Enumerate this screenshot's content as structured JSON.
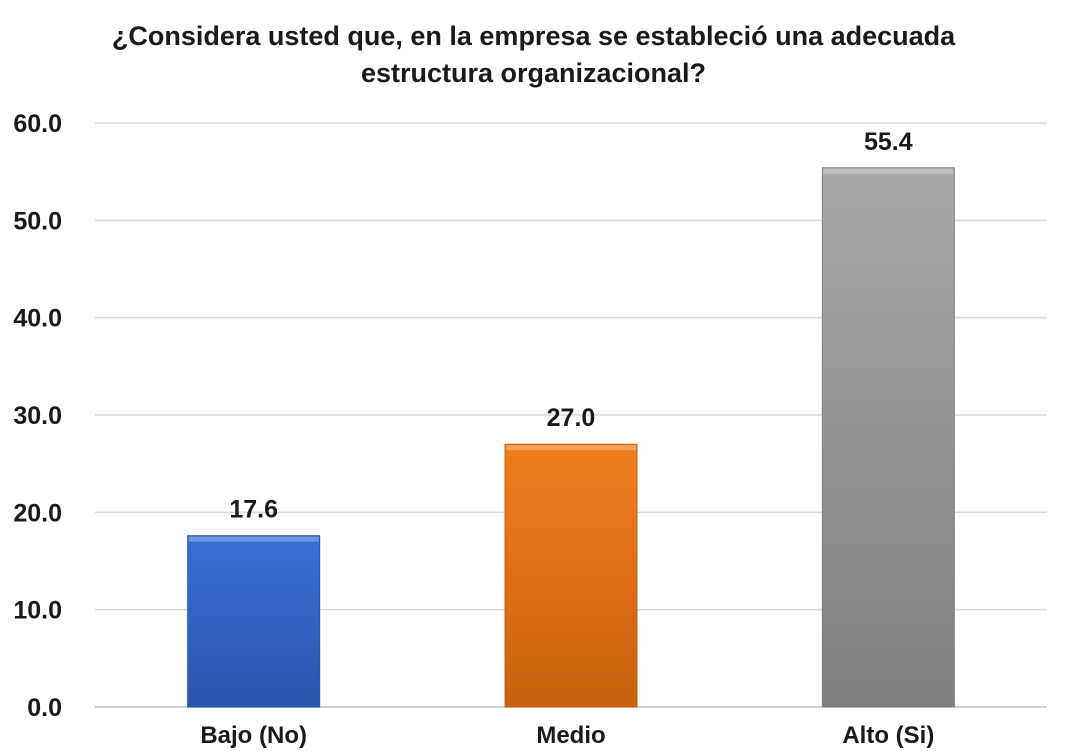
{
  "chart_data": {
    "type": "bar",
    "title_lines": [
      "¿Considera usted que, en la empresa se estableció una adecuada",
      "estructura organizacional?"
    ],
    "categories": [
      "Bajo (No)",
      "Medio",
      "Alto (Si)"
    ],
    "values": [
      17.6,
      27.0,
      55.4
    ],
    "value_labels": [
      "17.6",
      "27.0",
      "55.4"
    ],
    "bar_colors": [
      "#3a6fd6",
      "#f07e1e",
      "#a8a8a8"
    ],
    "bar_colors_dark": [
      "#2a54ad",
      "#c8610f",
      "#7f7f7f"
    ],
    "yticks": [
      "0.0",
      "10.0",
      "20.0",
      "30.0",
      "40.0",
      "50.0",
      "60.0"
    ],
    "ylim": [
      0,
      60
    ],
    "grid": true,
    "legend": "none",
    "xlabel": "",
    "ylabel": ""
  }
}
